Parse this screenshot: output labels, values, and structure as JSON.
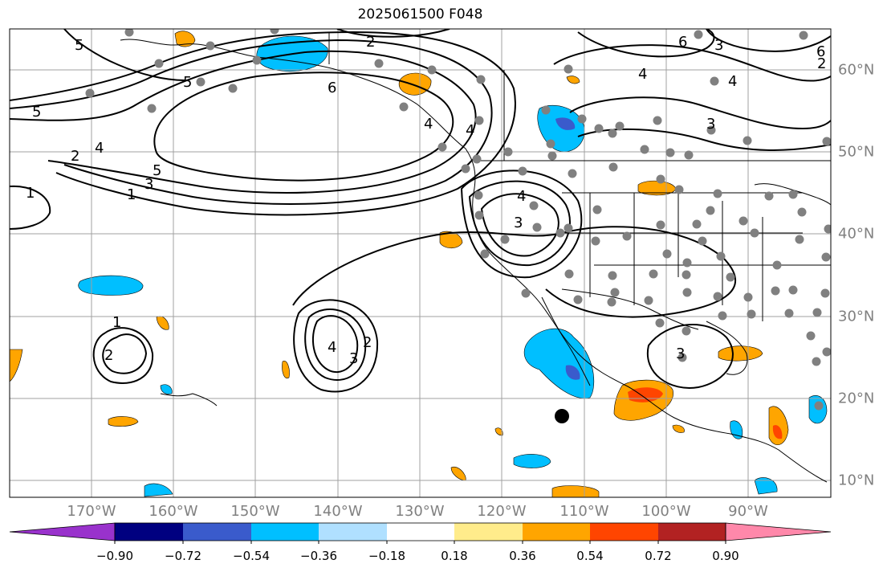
{
  "title": "2025061500 F048",
  "longitude_labels": [
    "170°W",
    "160°W",
    "150°W",
    "140°W",
    "130°W",
    "120°W",
    "110°W",
    "100°W",
    "90°W"
  ],
  "latitude_labels": [
    "60°N",
    "50°N",
    "40°N",
    "30°N",
    "20°N",
    "10°N"
  ],
  "contour_labels": [
    "2",
    "5",
    "6",
    "4",
    "5",
    "6",
    "2",
    "4",
    "5",
    "3",
    "1",
    "1",
    "4",
    "3",
    "5",
    "4",
    "4",
    "3",
    "2",
    "1",
    "2",
    "4",
    "3",
    "2",
    "3",
    "6",
    "4",
    "3"
  ],
  "colorbar": {
    "ticks": [
      "−0.90",
      "−0.72",
      "−0.54",
      "−0.36",
      "−0.18",
      "0.18",
      "0.36",
      "0.54",
      "0.72",
      "0.90"
    ],
    "colors": [
      "#9932cc",
      "#000080",
      "#3a5bcc",
      "#00bfff",
      "#b0e0ff",
      "#ffffff",
      "#ffec8b",
      "#ffa500",
      "#ff4500",
      "#b22222",
      "#ff88aa"
    ]
  }
}
